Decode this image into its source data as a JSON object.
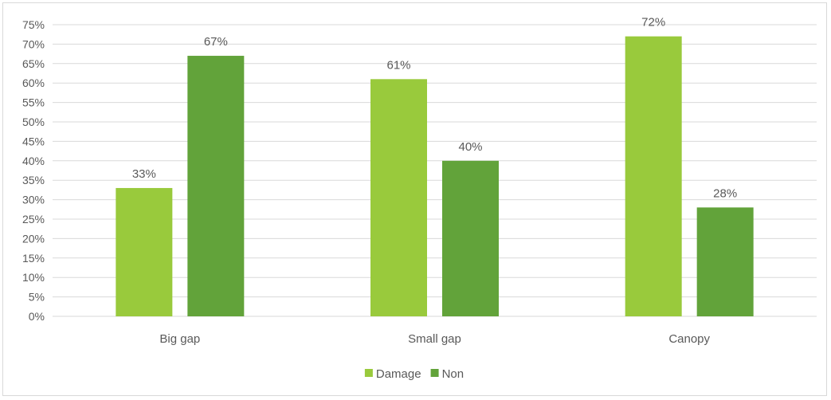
{
  "chart_data": {
    "type": "bar",
    "categories": [
      "Big gap",
      "Small gap",
      "Canopy"
    ],
    "series": [
      {
        "name": "Damage",
        "values": [
          33,
          61,
          72
        ],
        "labels": [
          "33%",
          "61%",
          "72%"
        ],
        "color": "#99ca3c"
      },
      {
        "name": "Non",
        "values": [
          67,
          40,
          28
        ],
        "labels": [
          "67%",
          "40%",
          "28%"
        ],
        "color": "#62a33a"
      }
    ],
    "ylim": [
      0,
      75
    ],
    "ytick_step": 5,
    "yticks": [
      "0%",
      "5%",
      "10%",
      "15%",
      "20%",
      "25%",
      "30%",
      "35%",
      "40%",
      "45%",
      "50%",
      "55%",
      "60%",
      "65%",
      "70%",
      "75%"
    ],
    "grid": true,
    "legend_position": "bottom",
    "gridline_color": "#d9d9d9"
  }
}
